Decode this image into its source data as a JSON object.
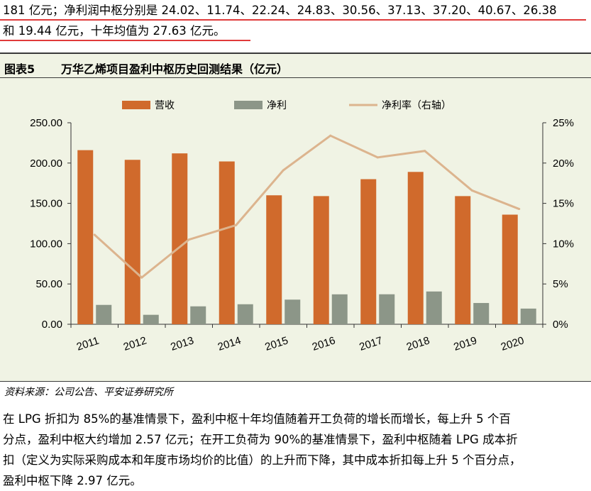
{
  "top_paragraph": {
    "lines": [
      "181 亿元；净利润中枢分别是 24.02、11.74、22.24、24.83、30.56、37.13、37.20、40.67、26.38",
      "和 19.44 亿元，十年均值为 27.63 亿元。"
    ]
  },
  "figure": {
    "number": "图表5",
    "title": "万华乙烯项目盈利中枢历史回测结果（亿元）"
  },
  "chart_data": {
    "type": "bar",
    "categories": [
      "2011",
      "2012",
      "2013",
      "2014",
      "2015",
      "2016",
      "2017",
      "2018",
      "2019",
      "2020"
    ],
    "series": [
      {
        "name": "营收",
        "type": "bar",
        "axis": "left",
        "color": "#d06a2c",
        "values": [
          216,
          204,
          212,
          202,
          160,
          159,
          180,
          189,
          159,
          136
        ]
      },
      {
        "name": "净利",
        "type": "bar",
        "axis": "left",
        "color": "#8c9688",
        "values": [
          24.02,
          11.74,
          22.24,
          24.83,
          30.56,
          37.13,
          37.2,
          40.67,
          26.38,
          19.44
        ]
      },
      {
        "name": "净利率（右轴）",
        "type": "line",
        "axis": "right",
        "color": "#dcb48e",
        "values": [
          11.1,
          5.8,
          10.5,
          12.3,
          19.1,
          23.4,
          20.7,
          21.5,
          16.6,
          14.3
        ]
      }
    ],
    "left_axis": {
      "min": 0,
      "max": 250,
      "ticks": [
        "0.00",
        "50.00",
        "100.00",
        "150.00",
        "200.00",
        "250.00"
      ]
    },
    "right_axis": {
      "min": 0,
      "max": 25,
      "ticks": [
        "0%",
        "5%",
        "10%",
        "15%",
        "20%",
        "25%"
      ]
    },
    "legend_position": "top"
  },
  "source": {
    "text": "资料来源：公司公告、平安证券研究所"
  },
  "bottom_paragraph": {
    "lines": [
      "在 LPG 折扣为 85%的基准情景下，盈利中枢十年均值随着开工负荷的增长而增长，每上升 5 个百",
      "分点，盈利中枢大约增加 2.57 亿元；在开工负荷为 90%的基准情景下，盈利中枢随着 LPG 成本折",
      "扣（定义为实际采购成本和年度市场均价的比值）的上升而下降，其中成本折扣每上升 5 个百分点，",
      "盈利中枢下降 2.97 亿元。"
    ]
  }
}
